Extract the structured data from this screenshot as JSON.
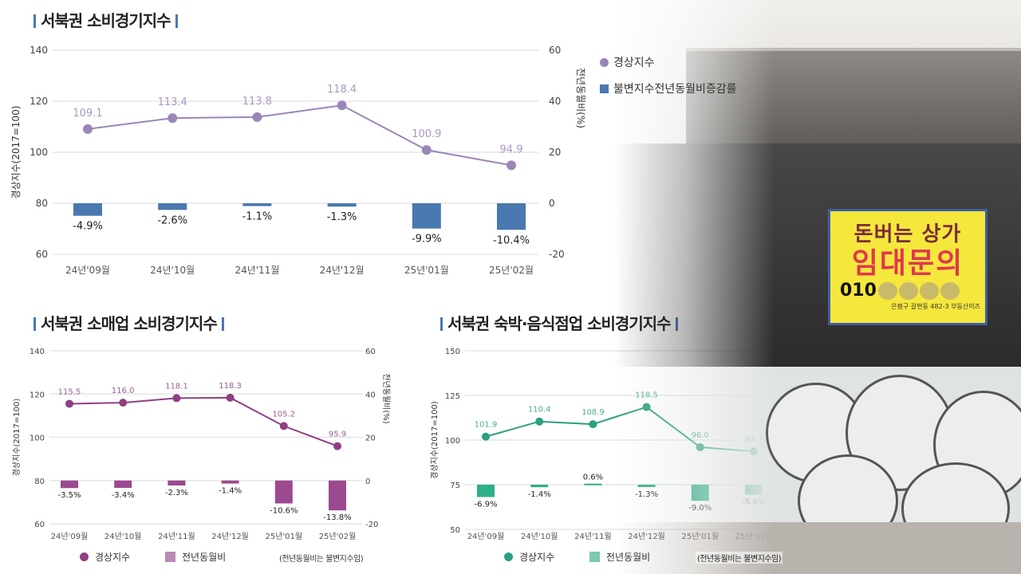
{
  "chart_data": [
    {
      "type": "bar+line",
      "title": "서북권 소비경기지수",
      "y_axis_title": "경상지수(2017=100)",
      "y2_axis_title": "전년동월비(%)",
      "categories": [
        "24년'09월",
        "24년'10월",
        "24년'11월",
        "24년'12월",
        "25년'01월",
        "25년'02월"
      ],
      "ylim": [
        60,
        140
      ],
      "y2lim": [
        -20,
        60
      ],
      "left_ticks": [
        140,
        120,
        100,
        80,
        60
      ],
      "right_ticks": [
        60,
        40,
        20,
        0,
        -20
      ],
      "grid": true,
      "legend_placement": "top-right",
      "series": [
        {
          "name": "경상지수",
          "type": "line",
          "axis": "left",
          "color": "#9b86b8",
          "values": [
            109.1,
            113.4,
            113.8,
            118.4,
            100.9,
            94.9
          ],
          "labels": [
            "109.1",
            "113.4",
            "113.8",
            "118.4",
            "100.9",
            "94.9"
          ]
        },
        {
          "name": "불변지수전년동월비증감률",
          "type": "bar",
          "axis": "right",
          "color": "#4a78b0",
          "values": [
            -4.9,
            -2.6,
            -1.1,
            -1.3,
            -9.9,
            -10.4
          ],
          "labels": [
            "-4.9%",
            "-2.6%",
            "-1.1%",
            "-1.3%",
            "-9.9%",
            "-10.4%"
          ]
        }
      ]
    },
    {
      "type": "bar+line",
      "title": "서북권 소매업 소비경기지수",
      "y_axis_title": "경상지수(2017=100)",
      "y2_axis_title": "전년동월비(%)",
      "categories": [
        "24년'09월",
        "24년'10월",
        "24년'11월",
        "24년'12월",
        "25년'01월",
        "25년'02월"
      ],
      "ylim": [
        60,
        140
      ],
      "y2lim": [
        -20,
        60
      ],
      "left_ticks": [
        140,
        120,
        100,
        80,
        60
      ],
      "right_ticks": [
        60,
        40,
        20,
        0,
        -20
      ],
      "grid": true,
      "legend_placement": "bottom",
      "note": "(전년동월비는 불변지수임)",
      "series": [
        {
          "name": "경상지수",
          "type": "line",
          "axis": "left",
          "color": "#8e3f82",
          "values": [
            115.5,
            116.0,
            118.1,
            118.3,
            105.2,
            95.9
          ],
          "labels": [
            "115.5",
            "116.0",
            "118.1",
            "118.3",
            "105.2",
            "95.9"
          ]
        },
        {
          "name": "전년동월비",
          "type": "bar",
          "axis": "right",
          "color": "#9b4a90",
          "legend_color": "#b88ab4",
          "values": [
            -3.5,
            -3.4,
            -2.3,
            -1.4,
            -10.6,
            -13.8
          ],
          "labels": [
            "-3.5%",
            "-3.4%",
            "-2.3%",
            "-1.4%",
            "-10.6%",
            "-13.8%"
          ]
        }
      ]
    },
    {
      "type": "bar+line",
      "title": "서북권 숙박·음식점업 소비경기지수",
      "y_axis_title": "경상지수(2017=100)",
      "categories": [
        "24년'09월",
        "24년'10월",
        "24년'11월",
        "24년'12월",
        "25년'01월",
        "25년'02월"
      ],
      "ylim": [
        50,
        150
      ],
      "left_ticks": [
        150,
        125,
        100,
        75,
        50
      ],
      "grid": true,
      "legend_placement": "bottom",
      "note": "(전년동월비는 불변지수임)",
      "series": [
        {
          "name": "경상지수",
          "type": "line",
          "axis": "left",
          "color": "#2aa080",
          "values": [
            101.9,
            110.4,
            108.9,
            118.5,
            96.0,
            93.7
          ],
          "labels": [
            "101.9",
            "110.4",
            "108.9",
            "118.5",
            "96.0",
            "93.7"
          ]
        },
        {
          "name": "전년동월비",
          "type": "bar",
          "axis": "right",
          "color": "#2fae8a",
          "legend_color": "#7cc9ae",
          "values": [
            -6.9,
            -1.4,
            0.6,
            -1.3,
            -9.0,
            -5.6
          ],
          "labels": [
            "-6.9%",
            "-1.4%",
            "0.6%",
            "-1.3%",
            "-9.0%",
            "-5.6%"
          ]
        }
      ]
    }
  ],
  "photo": {
    "sign": {
      "line1": "돈버는 상가",
      "line2": "임대문의",
      "phone_visible": "010",
      "address": "은평구 갈현동 482-3 부동산이즈"
    }
  }
}
